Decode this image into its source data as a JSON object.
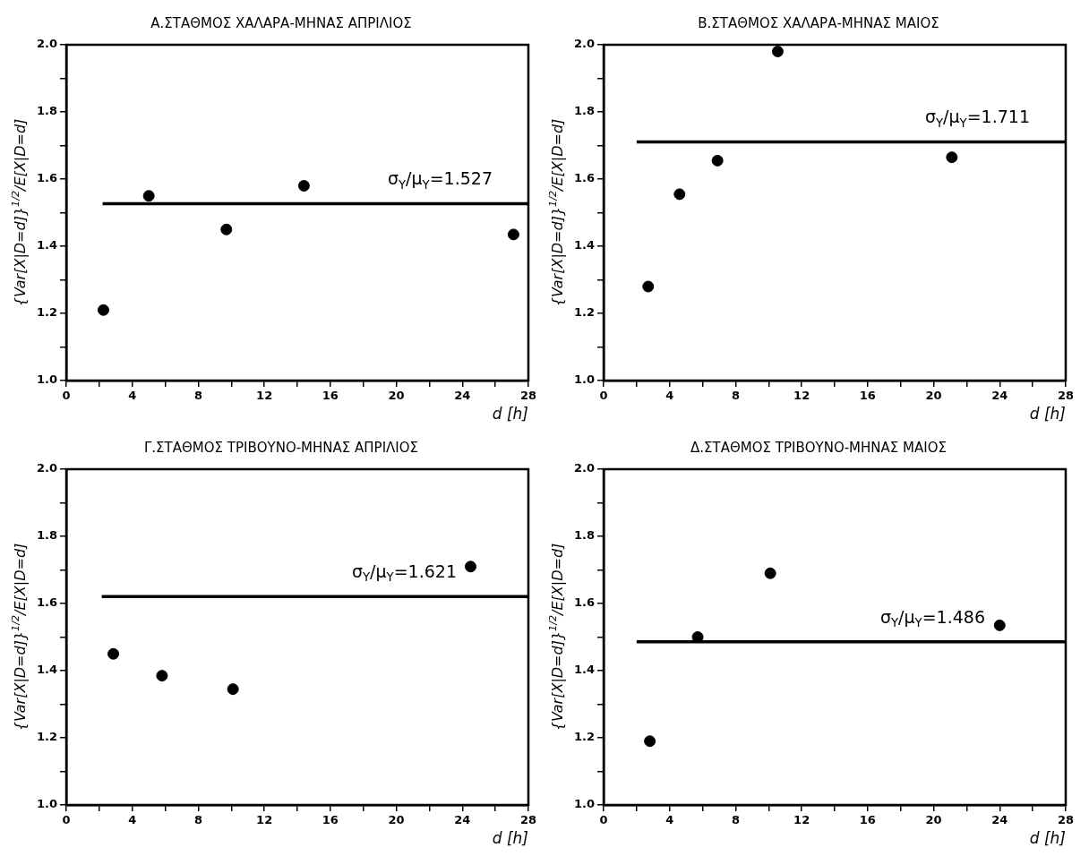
{
  "chart_data": [
    {
      "type": "scatter",
      "title": "Α.ΣΤΑΘΜΟΣ ΧΑΛΑΡΑ-ΜΗΝΑΣ ΑΠΡΙΛΙΟΣ",
      "xlabel": "d [h]",
      "ylabel": "{Var[X|D=d]}$^{1/2}$/E[X|D=d]",
      "xlim": [
        0,
        28
      ],
      "ylim": [
        1,
        2
      ],
      "marker": "circle",
      "xticks": [
        0,
        {
          "value": 2,
          "label": null
        },
        4,
        {
          "value": 6,
          "label": null
        },
        8,
        {
          "value": 10,
          "label": null
        },
        12,
        {
          "value": 14,
          "label": null
        },
        16,
        {
          "value": 18,
          "label": null
        },
        20,
        {
          "value": 22,
          "label": null
        },
        24,
        {
          "value": 26,
          "label": null
        },
        28
      ],
      "yticks": [
        {
          "value": 1,
          "label": "1.0"
        },
        {
          "value": 1.1,
          "label": null
        },
        1.2,
        {
          "value": 1.3,
          "label": null
        },
        1.4,
        {
          "value": 1.5,
          "label": null
        },
        1.6,
        {
          "value": 1.7,
          "label": null
        },
        1.8,
        {
          "value": 1.9,
          "label": null
        },
        {
          "value": 2,
          "label": "2.0"
        }
      ],
      "series": [
        {
          "color": "#000000",
          "x": [
            2.25,
            5.0,
            9.7,
            14.4,
            27.1
          ],
          "values": [
            1.21,
            1.55,
            1.45,
            1.58,
            1.435
          ]
        },
        {
          "type": "line",
          "marker": "none",
          "color": "#000000",
          "x": [
            2.2,
            28
          ],
          "values": [
            1.527,
            1.527
          ]
        }
      ],
      "annotations": [
        "σ$_{Y}$/μ$_{Y}$=1.527"
      ]
    },
    {
      "type": "scatter",
      "title": "Β.ΣΤΑΘΜΟΣ ΧΑΛΑΡΑ-ΜΗΝΑΣ ΜΑΙΟΣ",
      "xlabel": "d [h]",
      "ylabel": "{Var[X|D=d]}$^{1/2}$/E[X|D=d]",
      "xlim": [
        0,
        28
      ],
      "ylim": [
        1,
        2
      ],
      "marker": "circle",
      "xticks": [
        0,
        {
          "value": 2,
          "label": null
        },
        4,
        {
          "value": 6,
          "label": null
        },
        8,
        {
          "value": 10,
          "label": null
        },
        12,
        {
          "value": 14,
          "label": null
        },
        16,
        {
          "value": 18,
          "label": null
        },
        20,
        {
          "value": 22,
          "label": null
        },
        24,
        {
          "value": 26,
          "label": null
        },
        28
      ],
      "yticks": [
        {
          "value": 1,
          "label": "1.0"
        },
        {
          "value": 1.1,
          "label": null
        },
        1.2,
        {
          "value": 1.3,
          "label": null
        },
        1.4,
        {
          "value": 1.5,
          "label": null
        },
        1.6,
        {
          "value": 1.7,
          "label": null
        },
        1.8,
        {
          "value": 1.9,
          "label": null
        },
        {
          "value": 2,
          "label": "2.0"
        }
      ],
      "series": [
        {
          "color": "#000000",
          "x": [
            2.7,
            4.6,
            6.9,
            10.55,
            21.1
          ],
          "values": [
            1.28,
            1.555,
            1.655,
            1.98,
            1.665
          ]
        },
        {
          "type": "line",
          "marker": "none",
          "color": "#000000",
          "x": [
            2.0,
            28
          ],
          "values": [
            1.711,
            1.711
          ]
        }
      ],
      "annotations": [
        "σ$_{Y}$/μ$_{Y}$=1.711"
      ]
    },
    {
      "type": "scatter",
      "title": "Γ.ΣΤΑΘΜΟΣ ΤΡΙΒΟΥΝΟ-ΜΗΝΑΣ ΑΠΡΙΛΙΟΣ",
      "xlabel": "d [h]",
      "ylabel": "{Var[X|D=d]}$^{1/2}$/E[X|D=d]",
      "xlim": [
        0,
        28
      ],
      "ylim": [
        1,
        2
      ],
      "marker": "circle",
      "xticks": [
        0,
        {
          "value": 2,
          "label": null
        },
        4,
        {
          "value": 6,
          "label": null
        },
        8,
        {
          "value": 10,
          "label": null
        },
        12,
        {
          "value": 14,
          "label": null
        },
        16,
        {
          "value": 18,
          "label": null
        },
        20,
        {
          "value": 22,
          "label": null
        },
        24,
        {
          "value": 26,
          "label": null
        },
        28
      ],
      "yticks": [
        {
          "value": 1,
          "label": "1.0"
        },
        {
          "value": 1.1,
          "label": null
        },
        1.2,
        {
          "value": 1.3,
          "label": null
        },
        1.4,
        {
          "value": 1.5,
          "label": null
        },
        1.6,
        {
          "value": 1.7,
          "label": null
        },
        1.8,
        {
          "value": 1.9,
          "label": null
        },
        {
          "value": 2,
          "label": "2.0"
        }
      ],
      "series": [
        {
          "color": "#000000",
          "x": [
            2.85,
            5.8,
            10.1,
            24.5
          ],
          "values": [
            1.45,
            1.385,
            1.345,
            1.71
          ]
        },
        {
          "type": "line",
          "marker": "none",
          "color": "#000000",
          "x": [
            2.15,
            28
          ],
          "values": [
            1.621,
            1.621
          ]
        }
      ],
      "annotations": [
        "σ$_{Y}$/μ$_{Y}$=1.621"
      ]
    },
    {
      "type": "scatter",
      "title": "Δ.ΣΤΑΘΜΟΣ ΤΡΙΒΟΥΝΟ-ΜΗΝΑΣ ΜΑΙΟΣ",
      "xlabel": "d [h]",
      "ylabel": "{Var[X|D=d]}$^{1/2}$/E[X|D=d]",
      "xlim": [
        0,
        28
      ],
      "ylim": [
        1,
        2
      ],
      "marker": "circle",
      "xticks": [
        0,
        {
          "value": 2,
          "label": null
        },
        4,
        {
          "value": 6,
          "label": null
        },
        8,
        {
          "value": 10,
          "label": null
        },
        12,
        {
          "value": 14,
          "label": null
        },
        16,
        {
          "value": 18,
          "label": null
        },
        20,
        {
          "value": 22,
          "label": null
        },
        24,
        {
          "value": 26,
          "label": null
        },
        28
      ],
      "yticks": [
        {
          "value": 1,
          "label": "1.0"
        },
        {
          "value": 1.1,
          "label": null
        },
        1.2,
        {
          "value": 1.3,
          "label": null
        },
        1.4,
        {
          "value": 1.5,
          "label": null
        },
        1.6,
        {
          "value": 1.7,
          "label": null
        },
        1.8,
        {
          "value": 1.9,
          "label": null
        },
        {
          "value": 2,
          "label": "2.0"
        }
      ],
      "series": [
        {
          "color": "#000000",
          "x": [
            2.8,
            5.7,
            10.1,
            24.0
          ],
          "values": [
            1.19,
            1.5,
            1.69,
            1.535
          ]
        },
        {
          "type": "line",
          "marker": "none",
          "color": "#000000",
          "x": [
            2.0,
            28
          ],
          "values": [
            1.486,
            1.486
          ]
        }
      ],
      "annotations": [
        "σ$_{Y}$/μ$_{Y}$=1.486"
      ]
    }
  ]
}
